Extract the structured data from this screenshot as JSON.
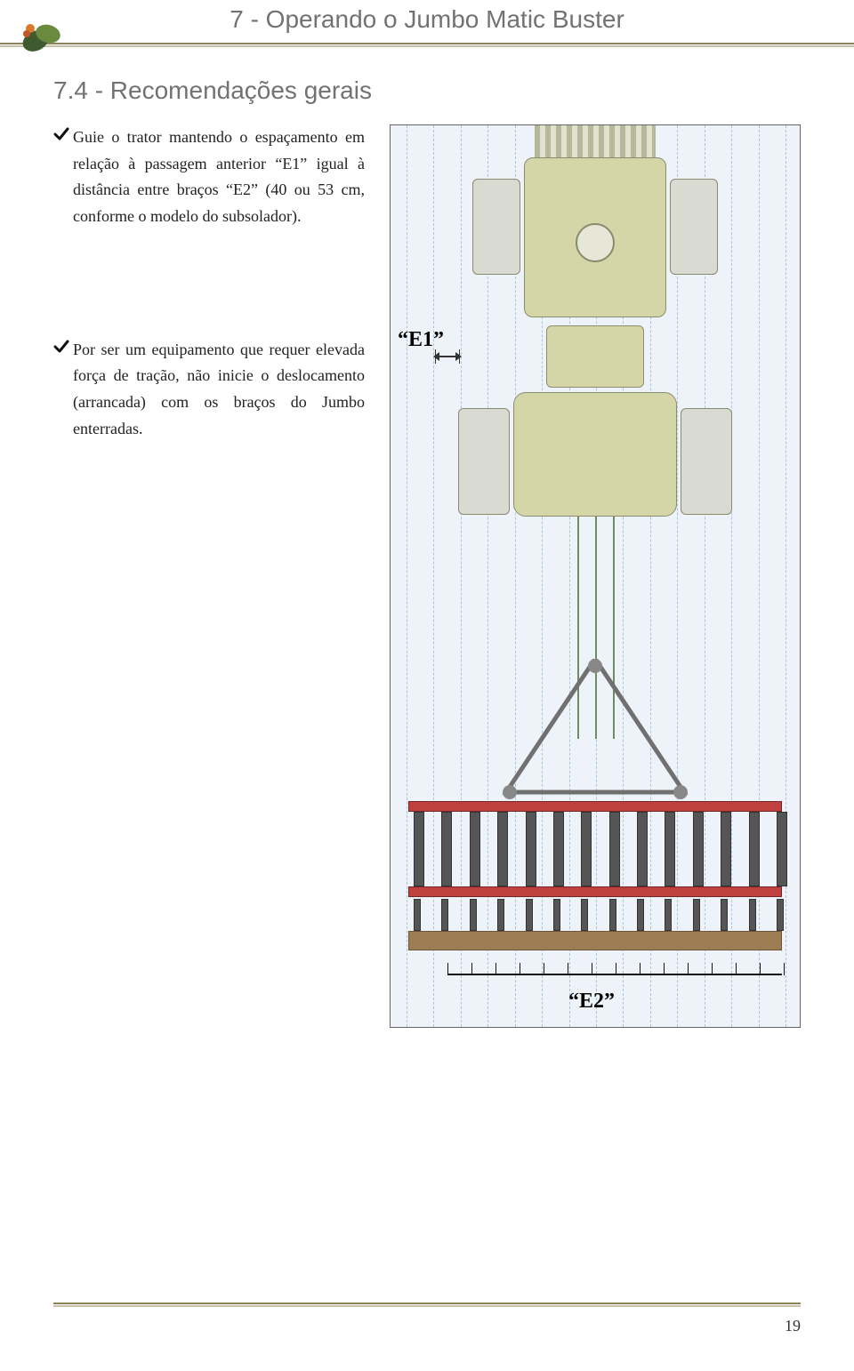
{
  "header": {
    "chapter_title": "7 - Operando o Jumbo Matic Buster"
  },
  "section": {
    "title": "7.4 - Recomendações gerais"
  },
  "bullets": [
    "Guie o trator mantendo o espaçamento em relação à passagem anterior “E1” igual à distância entre braços “E2” (40 ou 53 cm, conforme o modelo do subsolador).",
    "Por ser um equipamento que requer elevada força de tração, não inicie o deslocamento (arrancada) com os braços do Jumbo enterradas."
  ],
  "diagram": {
    "label_e1": "“E1”",
    "label_e2": "“E2”",
    "grid": {
      "vertical_line_count": 15,
      "line_color": "#6ea2c9",
      "background": "#eef3f9"
    },
    "colors": {
      "tractor_body": "#d5d6a8",
      "tractor_outline": "#8c8c6d",
      "red_bar": "#c04040",
      "brown_beam": "#9c7d54",
      "hydraulic_line": "#6d8c5f"
    },
    "e2_scale": {
      "tick_count": 15
    }
  },
  "footer": {
    "page_number": "19"
  }
}
